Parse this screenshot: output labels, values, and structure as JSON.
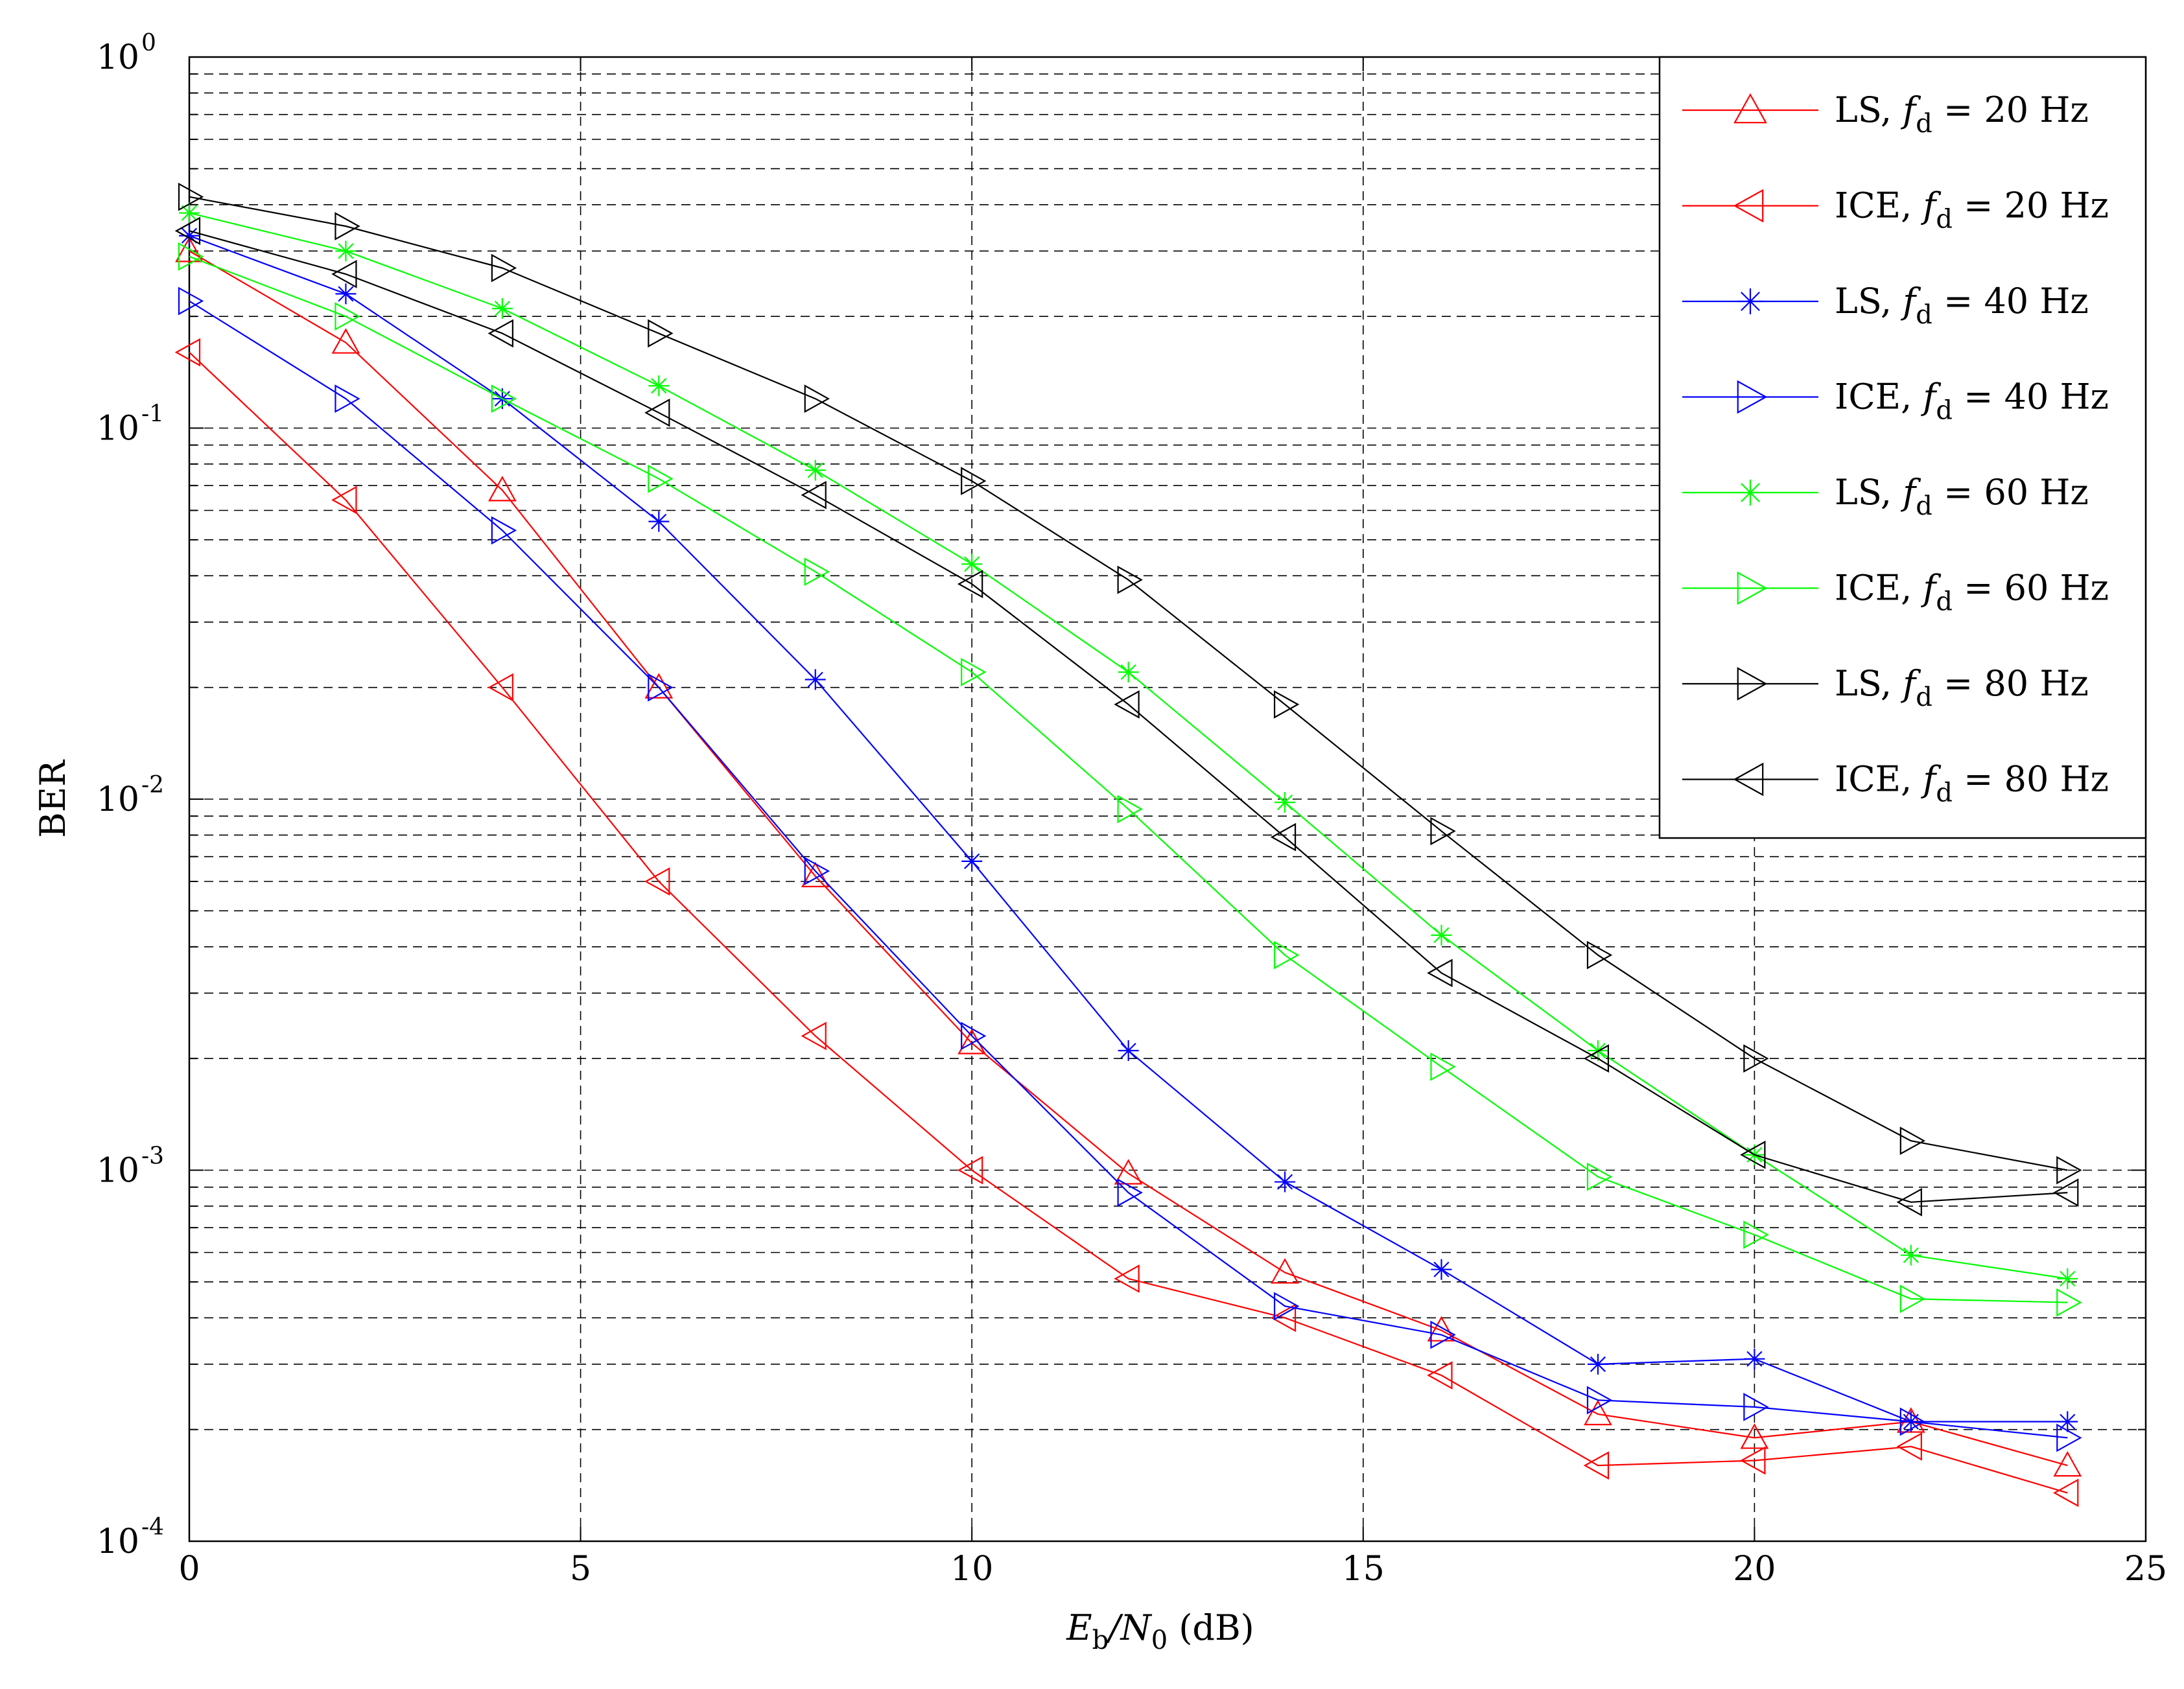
{
  "chart_data": {
    "type": "line",
    "title": "",
    "xlabel": {
      "main": "E",
      "sub1": "b",
      "slash": "/N",
      "sub2": "0",
      "unit": " (dB)"
    },
    "ylabel": "BER",
    "yscale": "log",
    "xlim": [
      0,
      25
    ],
    "ylim": [
      0.0001,
      1
    ],
    "xticks": [
      0,
      5,
      10,
      15,
      20,
      25
    ],
    "xtick_labels": [
      "0",
      "5",
      "10",
      "15",
      "20",
      "25"
    ],
    "yticks": [
      {
        "value": 0.0001,
        "base": "10",
        "exp": "-4"
      },
      {
        "value": 0.001,
        "base": "10",
        "exp": "-3"
      },
      {
        "value": 0.01,
        "base": "10",
        "exp": "-2"
      },
      {
        "value": 0.1,
        "base": "10",
        "exp": "-1"
      },
      {
        "value": 1,
        "base": "10",
        "exp": "0"
      }
    ],
    "grid": true,
    "legend_position": "top-right",
    "x": [
      0,
      2,
      4,
      6,
      8,
      10,
      12,
      14,
      16,
      18,
      20,
      22,
      24
    ],
    "series": [
      {
        "name": "LS, fd = 20 Hz",
        "est": "LS",
        "fsym": "f",
        "fsub": "d",
        "rest": " = 20 Hz",
        "color": "#ff0000",
        "marker": "triangle-up",
        "marker_size": 20,
        "values": [
          0.3,
          0.17,
          0.068,
          0.02,
          0.0062,
          0.0022,
          0.00098,
          0.00053,
          0.00037,
          0.00022,
          0.00019,
          0.00021,
          0.00016
        ]
      },
      {
        "name": "ICE, fd = 20 Hz",
        "est": "ICE",
        "fsym": "f",
        "fsub": "d",
        "rest": " = 20 Hz",
        "color": "#ff0000",
        "marker": "triangle-left",
        "marker_size": 20,
        "values": [
          0.16,
          0.064,
          0.02,
          0.006,
          0.0023,
          0.001,
          0.00051,
          0.0004,
          0.00028,
          0.00016,
          0.000165,
          0.00018,
          0.000135
        ]
      },
      {
        "name": "LS, fd = 40 Hz",
        "est": "LS",
        "fsym": "f",
        "fsub": "d",
        "rest": " = 40 Hz",
        "color": "#0000ff",
        "marker": "asterisk",
        "marker_size": 16,
        "values": [
          0.33,
          0.23,
          0.12,
          0.056,
          0.021,
          0.0068,
          0.0021,
          0.00093,
          0.00054,
          0.0003,
          0.00031,
          0.00021,
          0.00021
        ]
      },
      {
        "name": "ICE, fd = 40 Hz",
        "est": "ICE",
        "fsym": "f",
        "fsub": "d",
        "rest": " = 40 Hz",
        "color": "#0000ff",
        "marker": "triangle-right",
        "marker_size": 20,
        "values": [
          0.22,
          0.12,
          0.053,
          0.02,
          0.0064,
          0.0023,
          0.00087,
          0.00043,
          0.00036,
          0.00024,
          0.00023,
          0.00021,
          0.00019
        ]
      },
      {
        "name": "LS, fd = 60 Hz",
        "est": "LS",
        "fsym": "f",
        "fsub": "d",
        "rest": " = 60 Hz",
        "color": "#00ff00",
        "marker": "asterisk",
        "marker_size": 16,
        "values": [
          0.38,
          0.3,
          0.21,
          0.13,
          0.077,
          0.043,
          0.022,
          0.0098,
          0.0043,
          0.0021,
          0.0011,
          0.00059,
          0.00051
        ]
      },
      {
        "name": "ICE, fd = 60 Hz",
        "est": "ICE",
        "fsym": "f",
        "fsub": "d",
        "rest": " = 60 Hz",
        "color": "#00ff00",
        "marker": "triangle-right",
        "marker_size": 20,
        "values": [
          0.29,
          0.2,
          0.12,
          0.073,
          0.041,
          0.022,
          0.0094,
          0.0038,
          0.0019,
          0.00096,
          0.00067,
          0.00045,
          0.00044
        ]
      },
      {
        "name": "LS, fd = 80 Hz",
        "est": "LS",
        "fsym": "f",
        "fsub": "d",
        "rest": " = 80 Hz",
        "color": "#000000",
        "marker": "triangle-right",
        "marker_size": 20,
        "values": [
          0.42,
          0.35,
          0.27,
          0.18,
          0.12,
          0.072,
          0.039,
          0.018,
          0.0082,
          0.0038,
          0.002,
          0.0012,
          0.001
        ]
      },
      {
        "name": "ICE, fd = 80 Hz",
        "est": "ICE",
        "fsym": "f",
        "fsub": "d",
        "rest": " = 80 Hz",
        "color": "#000000",
        "marker": "triangle-left",
        "marker_size": 20,
        "values": [
          0.34,
          0.26,
          0.18,
          0.11,
          0.066,
          0.038,
          0.018,
          0.0079,
          0.0034,
          0.002,
          0.0011,
          0.00082,
          0.00087
        ]
      }
    ]
  }
}
